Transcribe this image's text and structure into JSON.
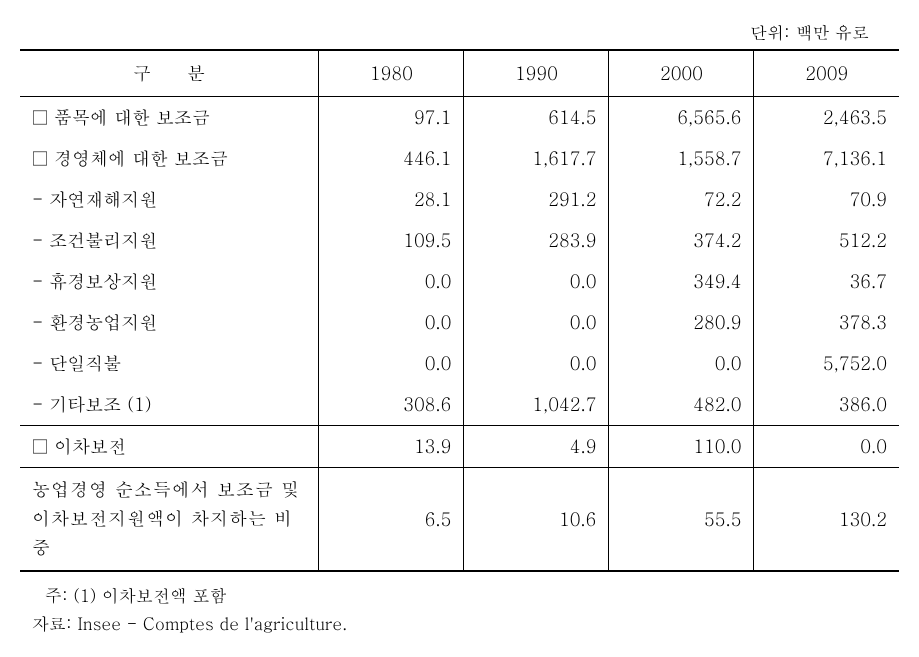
{
  "unit_label": "단위: 백만 유로",
  "table": {
    "header": {
      "category": "구   분",
      "years": [
        "1980",
        "1990",
        "2000",
        "2009"
      ]
    },
    "rows": [
      {
        "label": "□ 품목에 대한 보조금",
        "values": [
          "97.1",
          "614.5",
          "6,565.6",
          "2,463.5"
        ]
      },
      {
        "label": "□ 경영체에 대한 보조금",
        "values": [
          "446.1",
          "1,617.7",
          "1,558.7",
          "7,136.1"
        ]
      },
      {
        "label": "- 자연재해지원",
        "values": [
          "28.1",
          "291.2",
          "72.2",
          "70.9"
        ]
      },
      {
        "label": "- 조건불리지원",
        "values": [
          "109.5",
          "283.9",
          "374.2",
          "512.2"
        ]
      },
      {
        "label": "- 휴경보상지원",
        "values": [
          "0.0",
          "0.0",
          "349.4",
          "36.7"
        ]
      },
      {
        "label": "- 환경농업지원",
        "values": [
          "0.0",
          "0.0",
          "280.9",
          "378.3"
        ]
      },
      {
        "label": "- 단일직불",
        "values": [
          "0.0",
          "0.0",
          "0.0",
          "5,752.0"
        ]
      },
      {
        "label": "- 기타보조 (1)",
        "values": [
          "308.6",
          "1,042.7",
          "482.0",
          "386.0"
        ]
      },
      {
        "label": "□ 이차보전",
        "values": [
          "13.9",
          "4.9",
          "110.0",
          "0.0"
        ]
      }
    ],
    "bottom_row": {
      "label_line1": "농업경영  순소득에서  보조금  및",
      "label_line2": "이차보전지원액이 차지하는 비중",
      "values": [
        "6.5",
        "10.6",
        "55.5",
        "130.2"
      ]
    }
  },
  "footnote": {
    "note": "주: (1) 이차보전액 포함",
    "source": "자료: Insee - Comptes de l'agriculture."
  }
}
